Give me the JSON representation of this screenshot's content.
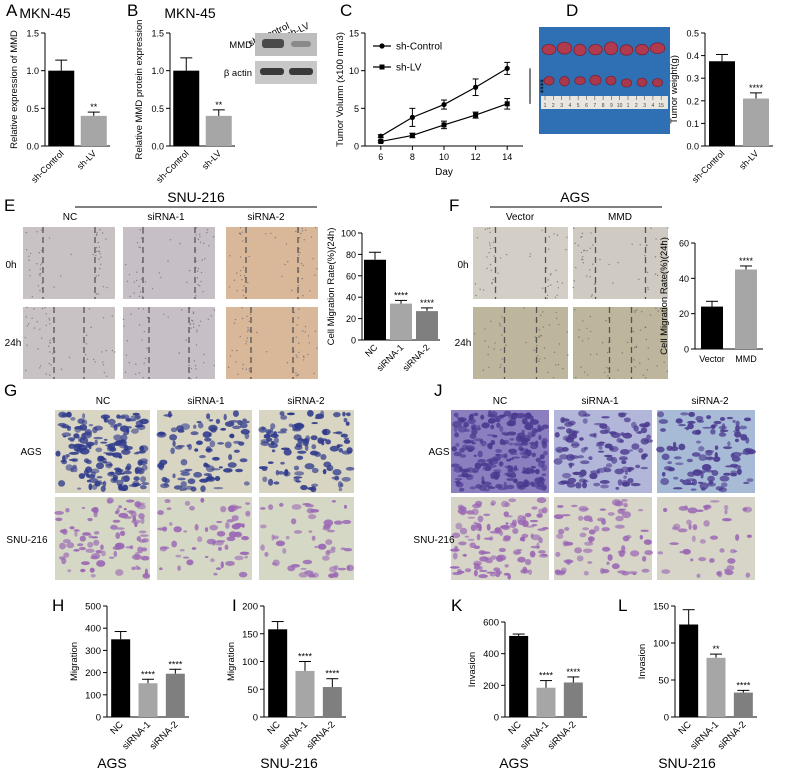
{
  "panel_letters": {
    "A": "A",
    "B": "B",
    "C": "C",
    "D": "D",
    "E": "E",
    "F": "F",
    "G": "G",
    "H": "H",
    "I": "I",
    "J": "J",
    "K": "K",
    "L": "L"
  },
  "titles": {
    "A": "MKN-45",
    "B": "MKN-45",
    "E": "SNU-216",
    "F": "AGS",
    "H": "AGS",
    "I": "SNU-216",
    "K": "AGS",
    "L": "SNU-216"
  },
  "western_blot": {
    "col1": "sh-Control",
    "col2": "sh-LV",
    "row1": "MMD",
    "row2": "β actin"
  },
  "image_labels": {
    "E_cols": [
      "NC",
      "siRNA-1",
      "siRNA-2"
    ],
    "F_cols": [
      "Vector",
      "MMD"
    ],
    "EF_rows": [
      "0h",
      "24h"
    ],
    "G_cols": [
      "NC",
      "siRNA-1",
      "siRNA-2"
    ],
    "G_rows": [
      "AGS",
      "SNU-216"
    ],
    "J_cols": [
      "NC",
      "siRNA-1",
      "siRNA-2"
    ],
    "J_rows": [
      "AGS",
      "SNU-216"
    ],
    "ruler_ticks": [
      "1",
      "2",
      "3",
      "4",
      "5",
      "6",
      "7",
      "8",
      "9",
      "10",
      "1",
      "2",
      "3",
      "4",
      "15"
    ]
  },
  "colors": {
    "black": "#000000",
    "gray": "#a6a6a6",
    "darkgray": "#7f7f7f",
    "crystal_blue": "#2f3a8c",
    "crystal_violet": "#9a66b4",
    "wound_bg_nc": "#c8c2c4",
    "wound_bg_orange": "#d9b89a",
    "wound_bg_olive": "#bdb59c"
  },
  "chart_data": [
    {
      "id": "A",
      "type": "bar",
      "categories": [
        "sh-Control",
        "sh-LV"
      ],
      "values": [
        1.0,
        0.4
      ],
      "errors": [
        0.14,
        0.05
      ],
      "colors": [
        "#000000",
        "#a6a6a6"
      ],
      "ylabel": "Relative expression of MMD",
      "ylim": [
        0,
        1.5
      ],
      "yticks": [
        "0.0",
        "0.5",
        "1.0",
        "1.5"
      ],
      "annotations": [
        "",
        "**"
      ]
    },
    {
      "id": "B",
      "type": "bar",
      "categories": [
        "sh-Control",
        "sh-LV"
      ],
      "values": [
        1.0,
        0.4
      ],
      "errors": [
        0.17,
        0.08
      ],
      "colors": [
        "#000000",
        "#a6a6a6"
      ],
      "ylabel": "Relative MMD protein expression",
      "ylim": [
        0,
        1.5
      ],
      "yticks": [
        "0.0",
        "0.5",
        "1.0",
        "1.5"
      ],
      "annotations": [
        "",
        "**"
      ]
    },
    {
      "id": "C",
      "type": "line",
      "x": [
        6,
        8,
        10,
        12,
        14
      ],
      "xlabel": "Day",
      "ylabel": "Tumor Volumn (x100 mm3)",
      "ylim": [
        0,
        15
      ],
      "yticks": [
        "0",
        "5",
        "10",
        "15"
      ],
      "legend_position": "top-left",
      "series": [
        {
          "name": "sh-Control",
          "values": [
            1.3,
            3.8,
            5.5,
            7.8,
            10.3
          ],
          "errors": [
            0.2,
            1.2,
            0.6,
            1.1,
            0.8
          ],
          "marker": "circle"
        },
        {
          "name": "sh-LV",
          "values": [
            0.6,
            1.4,
            2.8,
            4.1,
            5.6
          ],
          "errors": [
            0.1,
            0.3,
            0.5,
            0.4,
            0.7
          ],
          "marker": "square"
        }
      ],
      "annotation": "****"
    },
    {
      "id": "D",
      "type": "bar",
      "categories": [
        "sh-Control",
        "sh-LV"
      ],
      "values": [
        0.375,
        0.21
      ],
      "errors": [
        0.03,
        0.025
      ],
      "colors": [
        "#000000",
        "#a6a6a6"
      ],
      "ylabel": "Tumor weight(g)",
      "ylim": [
        0,
        0.5
      ],
      "yticks": [
        "0.0",
        "0.1",
        "0.2",
        "0.3",
        "0.4",
        "0.5"
      ],
      "annotations": [
        "",
        "****"
      ]
    },
    {
      "id": "E",
      "type": "bar",
      "categories": [
        "NC",
        "siRNA-1",
        "siRNA-2"
      ],
      "values": [
        75,
        34,
        27
      ],
      "errors": [
        7,
        3,
        3
      ],
      "colors": [
        "#000000",
        "#a6a6a6",
        "#7f7f7f"
      ],
      "ylabel": "Cell Migration Rate(%)(24h)",
      "ylim": [
        0,
        100
      ],
      "yticks": [
        "0",
        "20",
        "40",
        "60",
        "80",
        "100"
      ],
      "annotations": [
        "",
        "****",
        "****"
      ]
    },
    {
      "id": "F",
      "type": "bar",
      "categories": [
        "Vector",
        "MMD"
      ],
      "values": [
        24,
        45
      ],
      "errors": [
        3,
        2
      ],
      "colors": [
        "#000000",
        "#a6a6a6"
      ],
      "ylabel": "Cell Migration Rate(%)(24h)",
      "ylim": [
        0,
        60
      ],
      "yticks": [
        "0",
        "20",
        "40",
        "60"
      ],
      "annotations": [
        "",
        "****"
      ]
    },
    {
      "id": "H",
      "type": "bar",
      "categories": [
        "NC",
        "siRNA-1",
        "siRNA-2"
      ],
      "values": [
        350,
        152,
        195
      ],
      "errors": [
        35,
        18,
        20
      ],
      "colors": [
        "#000000",
        "#a6a6a6",
        "#7f7f7f"
      ],
      "ylabel": "Migration",
      "ylim": [
        0,
        500
      ],
      "yticks": [
        "0",
        "100",
        "200",
        "300",
        "400",
        "500"
      ],
      "annotations": [
        "",
        "****",
        "****"
      ]
    },
    {
      "id": "I",
      "type": "bar",
      "categories": [
        "NC",
        "siRNA-1",
        "siRNA-2"
      ],
      "values": [
        158,
        83,
        54
      ],
      "errors": [
        14,
        17,
        15
      ],
      "colors": [
        "#000000",
        "#a6a6a6",
        "#7f7f7f"
      ],
      "ylabel": "Migration",
      "ylim": [
        0,
        200
      ],
      "yticks": [
        "0",
        "50",
        "100",
        "150",
        "200"
      ],
      "annotations": [
        "",
        "****",
        "****"
      ]
    },
    {
      "id": "K",
      "type": "bar",
      "categories": [
        "NC",
        "siRNA-1",
        "siRNA-2"
      ],
      "values": [
        512,
        185,
        218
      ],
      "errors": [
        12,
        45,
        35
      ],
      "colors": [
        "#000000",
        "#a6a6a6",
        "#7f7f7f"
      ],
      "ylabel": "Invasion",
      "ylim": [
        0,
        600
      ],
      "yticks": [
        "0",
        "200",
        "400",
        "600"
      ],
      "annotations": [
        "",
        "****",
        "****"
      ]
    },
    {
      "id": "L",
      "type": "bar",
      "categories": [
        "NC",
        "siRNA-1",
        "siRNA-2"
      ],
      "values": [
        125,
        80,
        33
      ],
      "errors": [
        20,
        5,
        3
      ],
      "colors": [
        "#000000",
        "#a6a6a6",
        "#7f7f7f"
      ],
      "ylabel": "Invasion",
      "ylim": [
        0,
        150
      ],
      "yticks": [
        "0",
        "50",
        "100",
        "150"
      ],
      "annotations": [
        "",
        "**",
        "****"
      ]
    }
  ]
}
